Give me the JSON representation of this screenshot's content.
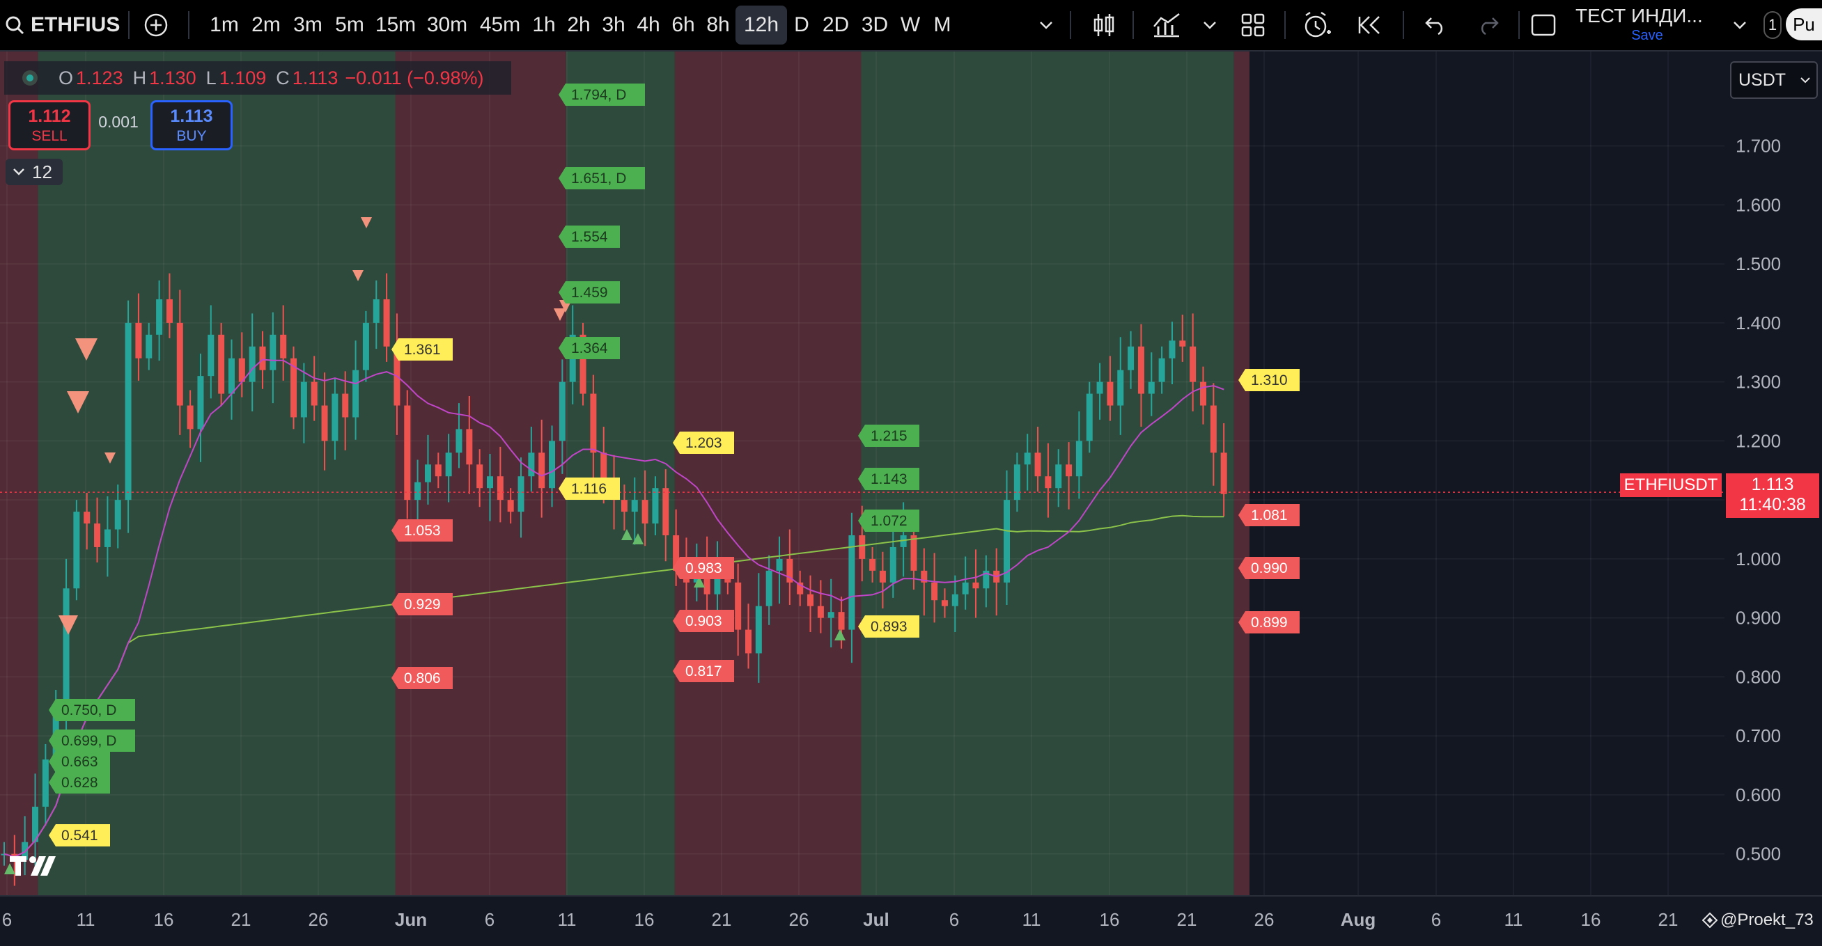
{
  "toolbar": {
    "symbol": "ETHFIUS",
    "intervals": [
      "1m",
      "2m",
      "3m",
      "5m",
      "15m",
      "30m",
      "45m",
      "1h",
      "2h",
      "3h",
      "4h",
      "6h",
      "8h",
      "12h",
      "D",
      "2D",
      "3D",
      "W",
      "M"
    ],
    "active_interval": "12h",
    "layout_name": "ТЕСТ ИНДИ...",
    "save_label": "Save",
    "badge": "1",
    "publish_label": "Pu",
    "icons": [
      "search-icon",
      "add-compare-icon",
      "chevron-down-icon",
      "candles-icon",
      "indicators-icon",
      "templates-icon",
      "alert-icon",
      "replay-icon",
      "undo-icon",
      "redo-icon",
      "fullscreen-icon"
    ]
  },
  "legend": {
    "open_label": "O",
    "open": "1.123",
    "high_label": "H",
    "high": "1.130",
    "low_label": "L",
    "low": "1.109",
    "close_label": "C",
    "close": "1.113",
    "change": "−0.011 (−0.98%)"
  },
  "trade": {
    "sell_price": "1.112",
    "sell_label": "SELL",
    "spread": "0.001",
    "buy_price": "1.113",
    "buy_label": "BUY"
  },
  "indicators_collapsed_count": "12",
  "currency": "USDT",
  "last_price": {
    "symbol": "ETHFIUSDT",
    "price": "1.113",
    "countdown": "11:40:38"
  },
  "author": "@Proekt_73",
  "colors": {
    "up": "#26a69a",
    "down": "#ef5350",
    "bg": "#131722",
    "band_green": "#2e4a3c",
    "band_red": "#512c36",
    "ma_fast": "#c046c8",
    "ma_slow": "#8bc34a",
    "label_green": "#4caf50",
    "label_red": "#f05a5a",
    "label_yellow": "#ffee58"
  },
  "chart_data": {
    "type": "candlestick",
    "symbol": "ETHFIUSDT",
    "interval": "12h",
    "ylim": [
      0.43,
      1.86
    ],
    "y_ticks": [
      "1.700",
      "1.600",
      "1.500",
      "1.400",
      "1.300",
      "1.200",
      "1.100",
      "1.000",
      "0.900",
      "0.800",
      "0.700",
      "0.600",
      "0.500"
    ],
    "x_ticks": [
      "6",
      "11",
      "16",
      "21",
      "26",
      "Jun",
      "6",
      "11",
      "16",
      "21",
      "26",
      "Jul",
      "6",
      "11",
      "16",
      "21",
      "26",
      "Aug",
      "6",
      "11",
      "16",
      "21"
    ],
    "bands": [
      {
        "from": "May 5",
        "to": "May 7",
        "color": "red"
      },
      {
        "from": "May 7",
        "to": "May 30",
        "color": "green"
      },
      {
        "from": "May 30",
        "to": "Jun 10",
        "color": "red"
      },
      {
        "from": "Jun 10",
        "to": "Jun 17",
        "color": "green"
      },
      {
        "from": "Jun 17",
        "to": "Jun 29",
        "color": "red"
      },
      {
        "from": "Jun 29",
        "to": "Jul 23",
        "color": "green"
      },
      {
        "from": "Jul 23",
        "to": "Jul 24",
        "color": "red"
      }
    ],
    "level_labels": [
      {
        "text": "1.794, D",
        "color": "green"
      },
      {
        "text": "1.651, D",
        "color": "green"
      },
      {
        "text": "1.554",
        "color": "green"
      },
      {
        "text": "1.459",
        "color": "green"
      },
      {
        "text": "1.364",
        "color": "green"
      },
      {
        "text": "1.361",
        "color": "yellow"
      },
      {
        "text": "1.203",
        "color": "yellow"
      },
      {
        "text": "1.116",
        "color": "yellow"
      },
      {
        "text": "1.053",
        "color": "red"
      },
      {
        "text": "0.929",
        "color": "red"
      },
      {
        "text": "0.806",
        "color": "red"
      },
      {
        "text": "0.983",
        "color": "red"
      },
      {
        "text": "0.903",
        "color": "red"
      },
      {
        "text": "0.817",
        "color": "red"
      },
      {
        "text": "1.215",
        "color": "green"
      },
      {
        "text": "1.143",
        "color": "green"
      },
      {
        "text": "1.072",
        "color": "green"
      },
      {
        "text": "0.893",
        "color": "yellow"
      },
      {
        "text": "1.310",
        "color": "yellow"
      },
      {
        "text": "1.081",
        "color": "red"
      },
      {
        "text": "0.990",
        "color": "red"
      },
      {
        "text": "0.899",
        "color": "red"
      },
      {
        "text": "0.750, D",
        "color": "green"
      },
      {
        "text": "0.699, D",
        "color": "green"
      },
      {
        "text": "0.663",
        "color": "green"
      },
      {
        "text": "0.628",
        "color": "green"
      },
      {
        "text": "0.541",
        "color": "yellow"
      }
    ],
    "candles_close": [
      0.5,
      0.49,
      0.52,
      0.58,
      0.66,
      0.74,
      0.95,
      1.08,
      1.06,
      1.02,
      1.05,
      1.1,
      1.4,
      1.34,
      1.38,
      1.44,
      1.4,
      1.26,
      1.22,
      1.31,
      1.38,
      1.28,
      1.34,
      1.3,
      1.36,
      1.32,
      1.38,
      1.34,
      1.24,
      1.3,
      1.26,
      1.2,
      1.28,
      1.24,
      1.32,
      1.4,
      1.44,
      1.36,
      1.26,
      1.1,
      1.13,
      1.16,
      1.14,
      1.18,
      1.22,
      1.16,
      1.12,
      1.14,
      1.1,
      1.08,
      1.14,
      1.18,
      1.12,
      1.2,
      1.3,
      1.38,
      1.28,
      1.18,
      1.12,
      1.1,
      1.08,
      1.1,
      1.06,
      1.12,
      1.04,
      0.98,
      0.96,
      1.0,
      0.94,
      0.98,
      0.96,
      0.88,
      0.84,
      0.92,
      0.98,
      1.0,
      0.96,
      0.94,
      0.92,
      0.9,
      0.91,
      0.88,
      1.04,
      1.0,
      0.98,
      0.96,
      1.02,
      1.04,
      0.98,
      0.96,
      0.93,
      0.92,
      0.94,
      0.96,
      0.95,
      0.98,
      0.96,
      1.1,
      1.16,
      1.18,
      1.14,
      1.12,
      1.16,
      1.14,
      1.2,
      1.28,
      1.3,
      1.26,
      1.32,
      1.36,
      1.28,
      1.3,
      1.34,
      1.37,
      1.36,
      1.3,
      1.26,
      1.18,
      1.11
    ],
    "ma_fast_label": "",
    "ma_slow_label": ""
  }
}
